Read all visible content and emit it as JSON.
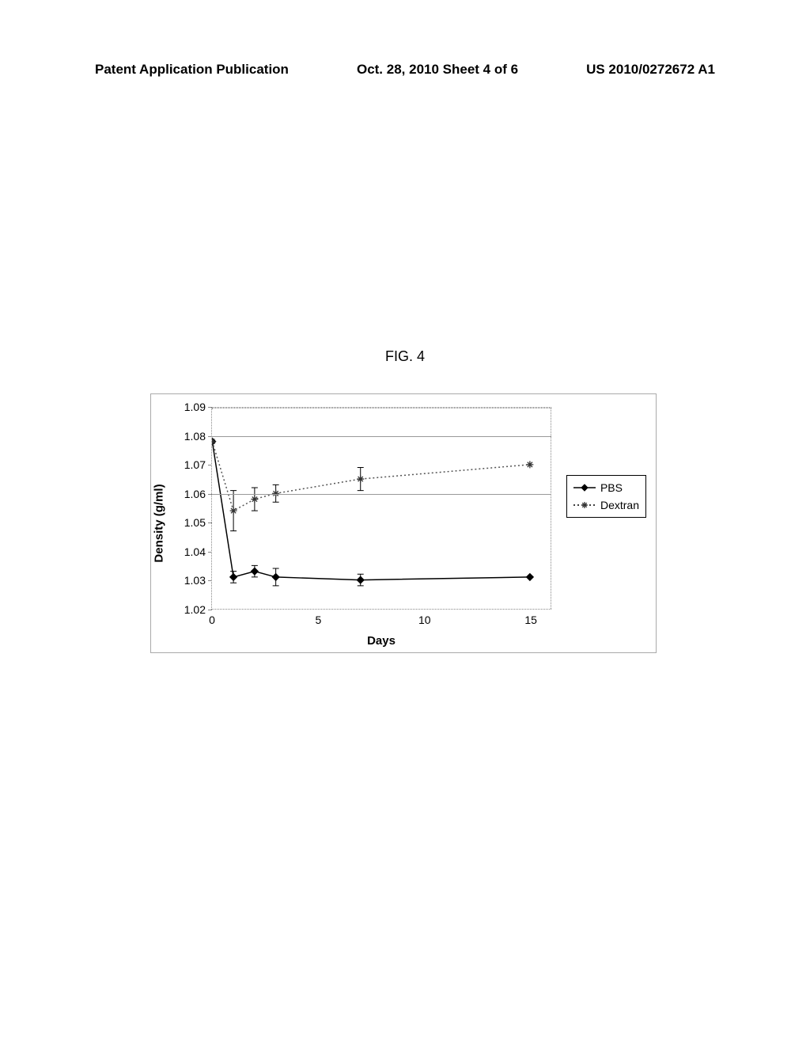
{
  "header": {
    "left": "Patent Application Publication",
    "center": "Oct. 28, 2010  Sheet 4 of 6",
    "right": "US 2010/0272672 A1"
  },
  "figure": {
    "label": "FIG. 4"
  },
  "chart": {
    "type": "line",
    "yaxis_title": "Density (g/ml)",
    "xaxis_title": "Days",
    "xlim": [
      0,
      16
    ],
    "ylim": [
      1.02,
      1.09
    ],
    "yticks": [
      1.02,
      1.03,
      1.04,
      1.05,
      1.06,
      1.07,
      1.08,
      1.09
    ],
    "xticks": [
      0,
      5,
      10,
      15
    ],
    "title_fontsize": 15,
    "tick_fontsize": 14,
    "gridlines_y": [
      1.06,
      1.08
    ],
    "background_color": "#ffffff",
    "series": [
      {
        "name": "PBS",
        "marker": "diamond",
        "dash": "solid",
        "color": "#000000",
        "x": [
          0,
          1,
          2,
          3,
          7,
          15
        ],
        "y": [
          1.078,
          1.031,
          1.033,
          1.031,
          1.03,
          1.031
        ],
        "err": [
          0,
          0.002,
          0.002,
          0.003,
          0.002,
          0
        ]
      },
      {
        "name": "Dextran",
        "marker": "star",
        "dash": "dotted",
        "color": "#555555",
        "x": [
          0,
          1,
          2,
          3,
          7,
          15
        ],
        "y": [
          1.078,
          1.054,
          1.058,
          1.06,
          1.065,
          1.07
        ],
        "err": [
          0,
          0.007,
          0.004,
          0.003,
          0.004,
          0
        ]
      }
    ],
    "legend": {
      "items": [
        {
          "label": "PBS",
          "marker": "diamond",
          "dash": "solid"
        },
        {
          "label": "Dextran",
          "marker": "star",
          "dash": "dotted"
        }
      ]
    }
  }
}
